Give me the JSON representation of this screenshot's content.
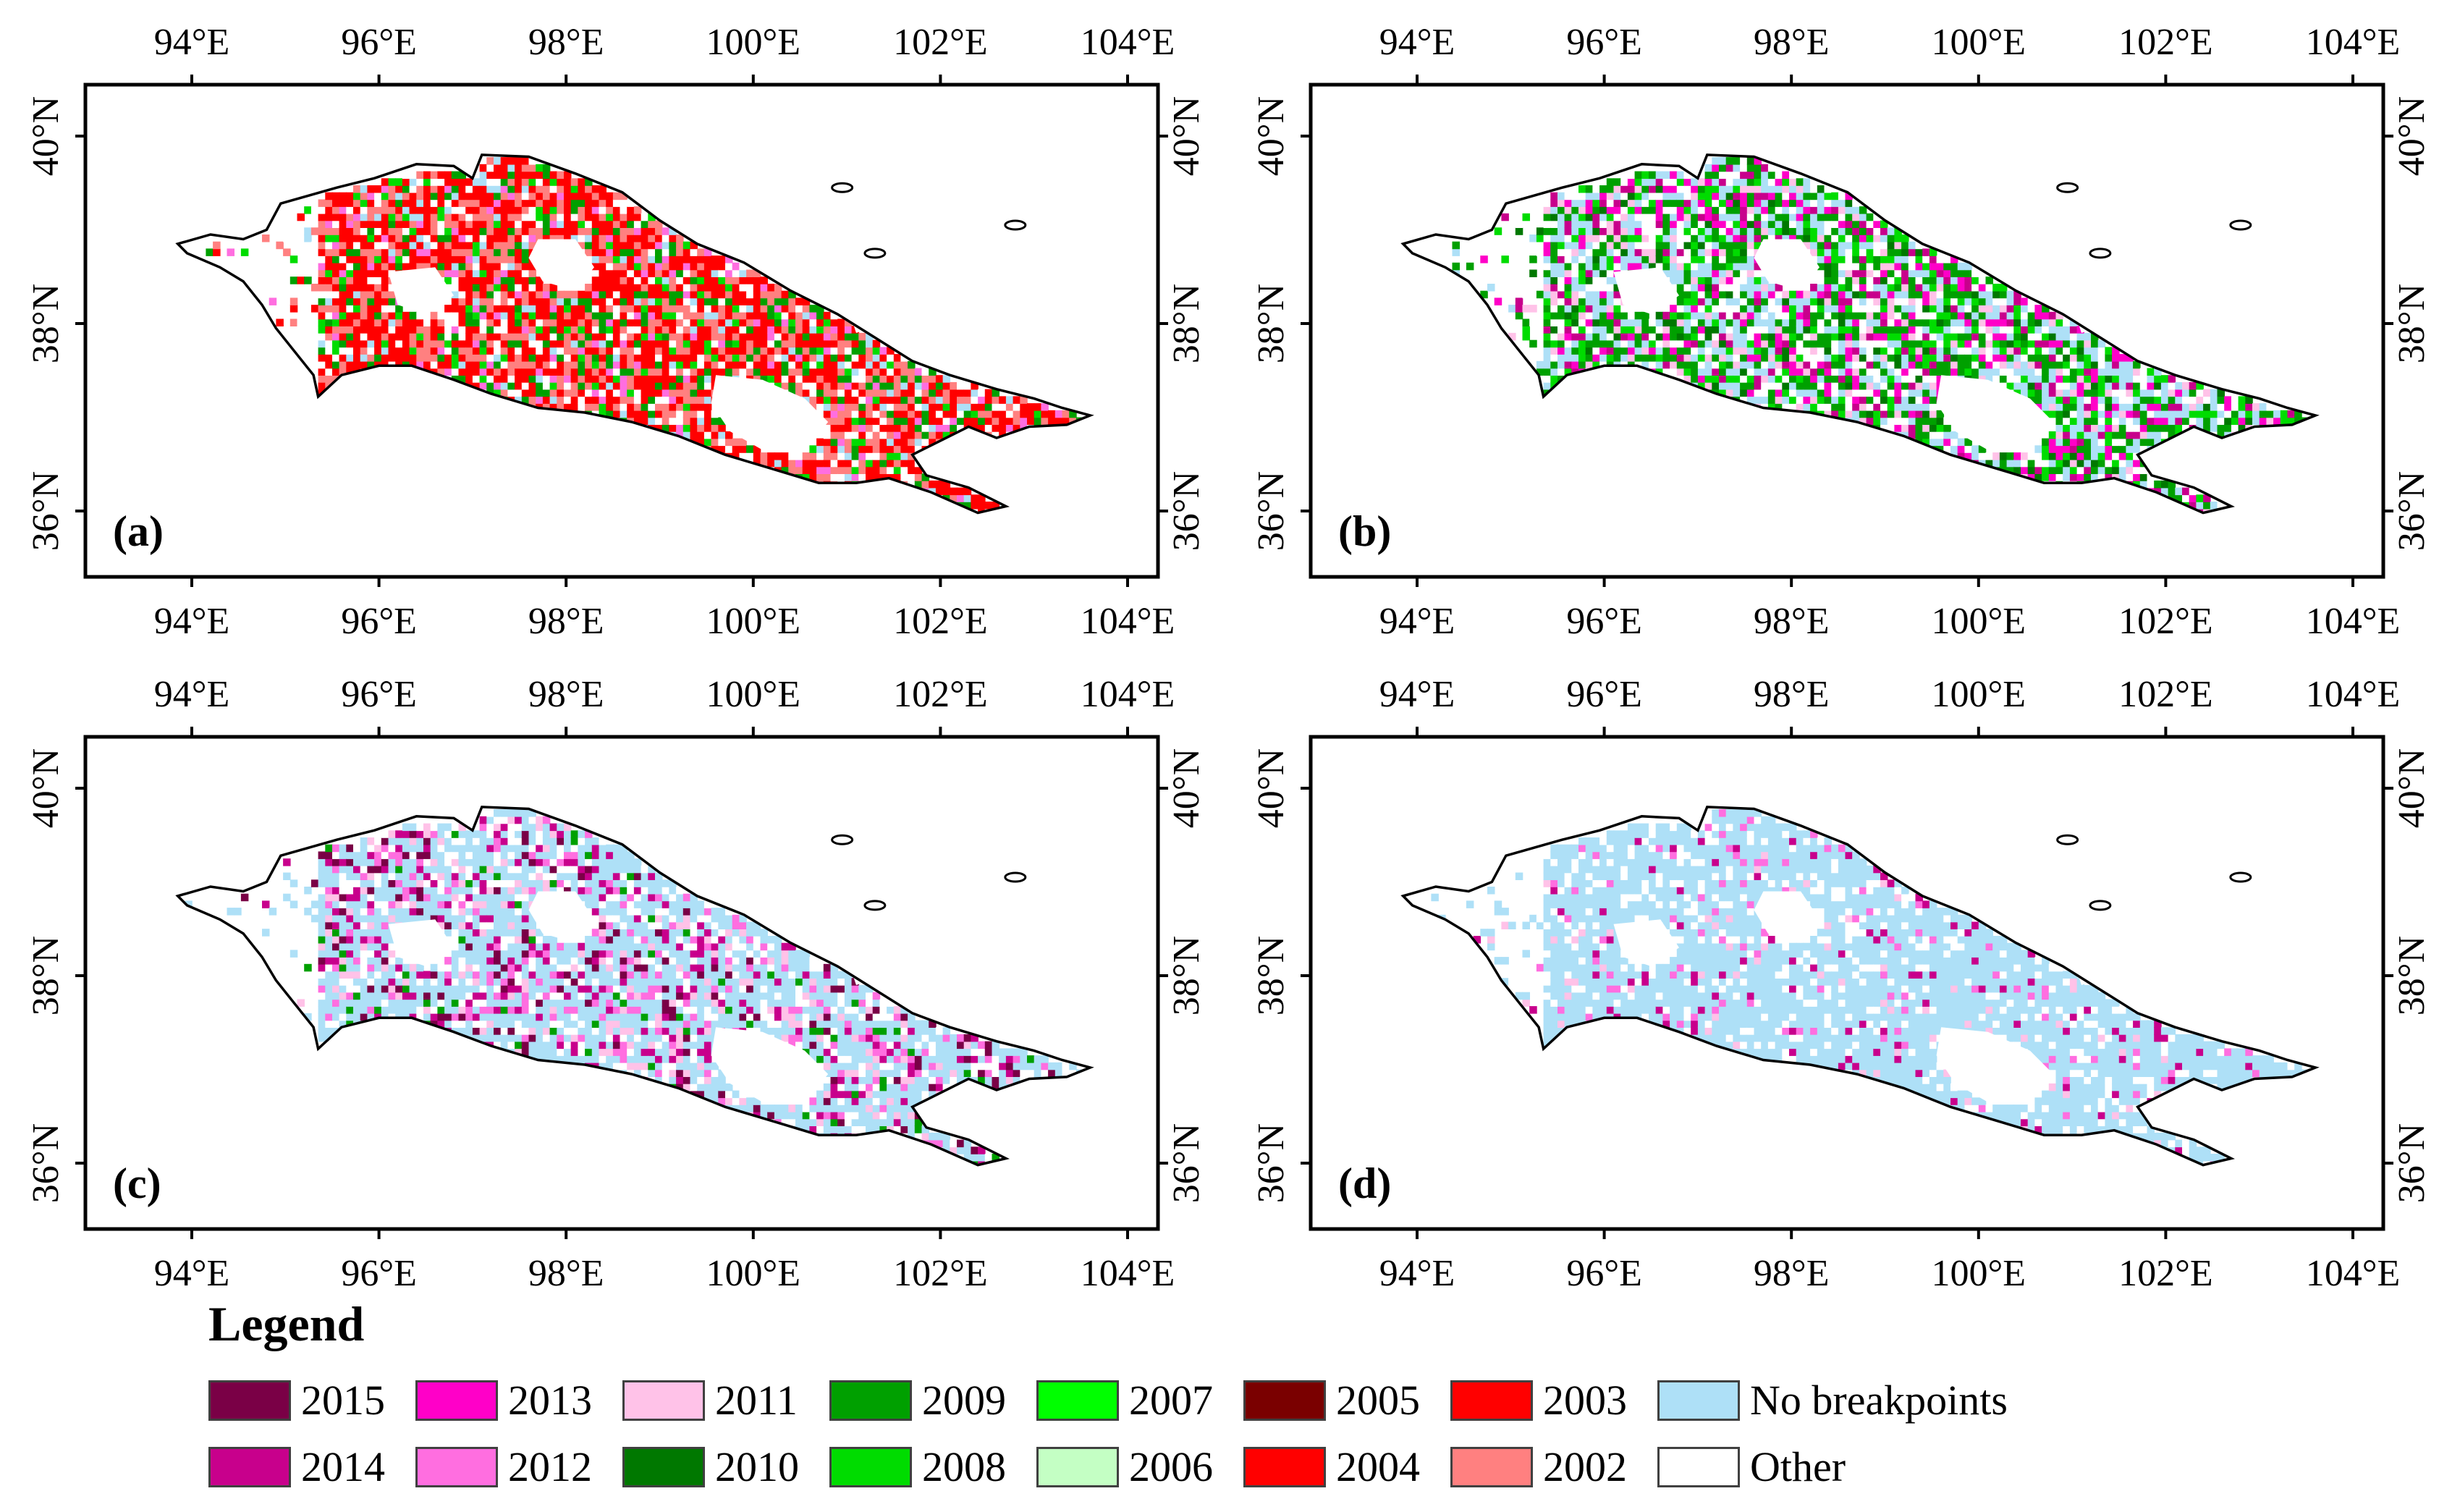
{
  "axes": {
    "lon_ticks": [
      "94°E",
      "96°E",
      "98°E",
      "100°E",
      "102°E",
      "104°E"
    ],
    "lat_ticks": [
      "40°N",
      "38°N",
      "36°N"
    ],
    "lon_values": [
      94,
      96,
      98,
      100,
      102,
      104
    ],
    "lat_values": [
      40,
      38,
      36
    ]
  },
  "panels": [
    {
      "label": "(a)",
      "scheme": "a"
    },
    {
      "label": "(b)",
      "scheme": "b"
    },
    {
      "label": "(c)",
      "scheme": "c"
    },
    {
      "label": "(d)",
      "scheme": "d"
    }
  ],
  "legend": {
    "title": "Legend",
    "items": [
      {
        "label": "2015",
        "color": "#7a0046"
      },
      {
        "label": "2013",
        "color": "#ff00c8"
      },
      {
        "label": "2011",
        "color": "#ffc2e8"
      },
      {
        "label": "2009",
        "color": "#00a000"
      },
      {
        "label": "2007",
        "color": "#00ff00"
      },
      {
        "label": "2005",
        "color": "#7a0000"
      },
      {
        "label": "2003",
        "color": "#ff0000"
      },
      {
        "label": "No breakpoints",
        "color": "#aee0f7"
      },
      {
        "label": "2014",
        "color": "#c8008c"
      },
      {
        "label": "2012",
        "color": "#ff6ee0"
      },
      {
        "label": "2010",
        "color": "#007800"
      },
      {
        "label": "2008",
        "color": "#00dc00"
      },
      {
        "label": "2006",
        "color": "#c4ffc4"
      },
      {
        "label": "2004",
        "color": "#ff0000"
      },
      {
        "label": "2002",
        "color": "#ff8080"
      },
      {
        "label": "Other",
        "color": "#ffffff"
      }
    ]
  }
}
